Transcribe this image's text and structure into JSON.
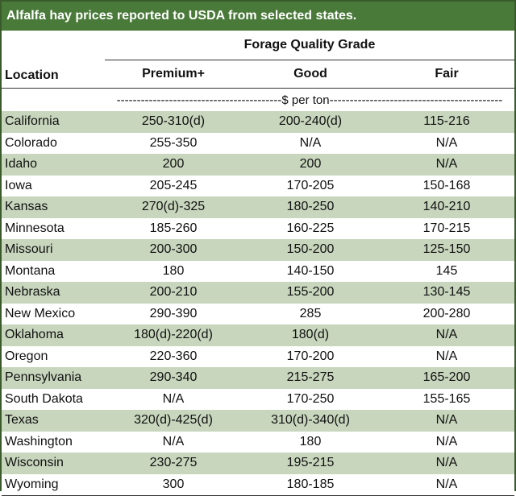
{
  "title": "Alfalfa hay prices reported to USDA from selected states.",
  "headers": {
    "group": "Forage Quality Grade",
    "location": "Location",
    "premium": "Premium+",
    "good": "Good",
    "fair": "Fair"
  },
  "unit_label": "-----------------------------------------$ per ton-------------------------------------------",
  "rows": [
    {
      "location": "California",
      "premium": "250-310(d)",
      "good": "200-240(d)",
      "fair": "115-216"
    },
    {
      "location": "Colorado",
      "premium": "255-350",
      "good": "N/A",
      "fair": "N/A"
    },
    {
      "location": "Idaho",
      "premium": "200",
      "good": "200",
      "fair": "N/A"
    },
    {
      "location": "Iowa",
      "premium": "205-245",
      "good": "170-205",
      "fair": "150-168"
    },
    {
      "location": "Kansas",
      "premium": "270(d)-325",
      "good": "180-250",
      "fair": "140-210"
    },
    {
      "location": "Minnesota",
      "premium": "185-260",
      "good": "160-225",
      "fair": "170-215"
    },
    {
      "location": "Missouri",
      "premium": "200-300",
      "good": "150-200",
      "fair": "125-150"
    },
    {
      "location": "Montana",
      "premium": "180",
      "good": "140-150",
      "fair": "145"
    },
    {
      "location": "Nebraska",
      "premium": "200-210",
      "good": "155-200",
      "fair": "130-145"
    },
    {
      "location": "New Mexico",
      "premium": "290-390",
      "good": "285",
      "fair": "200-280"
    },
    {
      "location": "Oklahoma",
      "premium": "180(d)-220(d)",
      "good": "180(d)",
      "fair": "N/A"
    },
    {
      "location": "Oregon",
      "premium": "220-360",
      "good": "170-200",
      "fair": "N/A"
    },
    {
      "location": "Pennsylvania",
      "premium": "290-340",
      "good": "215-275",
      "fair": "165-200"
    },
    {
      "location": "South Dakota",
      "premium": "N/A",
      "good": "170-250",
      "fair": "155-165"
    },
    {
      "location": "Texas",
      "premium": "320(d)-425(d)",
      "good": "310(d)-340(d)",
      "fair": "N/A"
    },
    {
      "location": "Washington",
      "premium": "N/A",
      "good": "180",
      "fair": "N/A"
    },
    {
      "location": "Wisconsin",
      "premium": "230-275",
      "good": "195-215",
      "fair": "N/A"
    },
    {
      "location": "Wyoming",
      "premium": "300",
      "good": "180-185",
      "fair": "N/A"
    }
  ]
}
